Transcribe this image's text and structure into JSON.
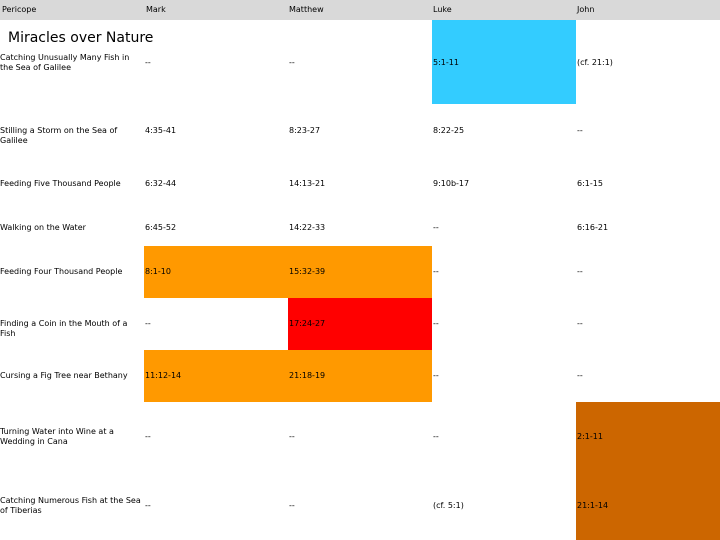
{
  "header": {
    "pericope": "Pericope",
    "mark": "Mark",
    "matthew": "Matthew",
    "luke": "Luke",
    "john": "John"
  },
  "section_title": "Miracles over Nature",
  "colors": {
    "header_band": "#d9d9d9",
    "blue": "#33ccff",
    "orange": "#ff9900",
    "red": "#ff0000",
    "brown": "#cc6600"
  },
  "rows": [
    {
      "pericope": "Catching Unusually Many Fish in the Sea of Galilee",
      "mark": "--",
      "matthew": "--",
      "luke": "5:1-11",
      "john": "(cf. 21:1)"
    },
    {
      "pericope": "Stilling a Storm on the Sea of Galilee",
      "mark": "4:35-41",
      "matthew": "8:23-27",
      "luke": "8:22-25",
      "john": "--"
    },
    {
      "pericope": "Feeding Five Thousand People",
      "mark": "6:32-44",
      "matthew": "14:13-21",
      "luke": "9:10b-17",
      "john": "6:1-15"
    },
    {
      "pericope": "Walking on the Water",
      "mark": "6:45-52",
      "matthew": "14:22-33",
      "luke": "--",
      "john": "6:16-21"
    },
    {
      "pericope": "Feeding Four Thousand People",
      "mark": "8:1-10",
      "matthew": "15:32-39",
      "luke": "--",
      "john": "--"
    },
    {
      "pericope": "Finding a Coin in the Mouth of a Fish",
      "mark": "--",
      "matthew": "17:24-27",
      "luke": "--",
      "john": "--"
    },
    {
      "pericope": "Cursing a Fig Tree near Bethany",
      "mark": "11:12-14",
      "matthew": "21:18-19",
      "luke": "--",
      "john": "--"
    },
    {
      "pericope": "Turning Water into Wine at a Wedding in Cana",
      "mark": "--",
      "matthew": "--",
      "luke": "--",
      "john": "2:1-11"
    },
    {
      "pericope": "Catching Numerous Fish at the Sea of Tiberias",
      "mark": "--",
      "matthew": "--",
      "luke": "(cf. 5:1)",
      "john": "21:1-14"
    }
  ]
}
